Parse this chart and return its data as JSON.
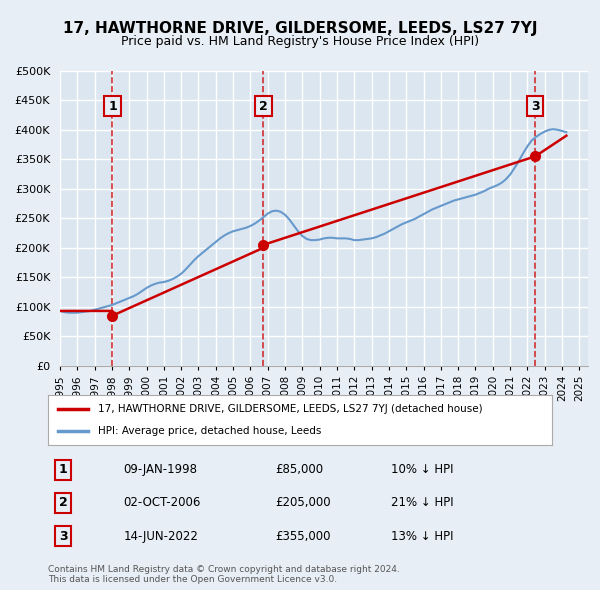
{
  "title": "17, HAWTHORNE DRIVE, GILDERSOME, LEEDS, LS27 7YJ",
  "subtitle": "Price paid vs. HM Land Registry's House Price Index (HPI)",
  "ylabel": "",
  "xlabel": "",
  "ylim": [
    0,
    500000
  ],
  "yticks": [
    0,
    50000,
    100000,
    150000,
    200000,
    250000,
    300000,
    350000,
    400000,
    450000,
    500000
  ],
  "ytick_labels": [
    "£0",
    "£50K",
    "£100K",
    "£150K",
    "£200K",
    "£250K",
    "£300K",
    "£350K",
    "£400K",
    "£450K",
    "£500K"
  ],
  "xlim_start": 1995.0,
  "xlim_end": 2025.5,
  "background_color": "#e8eef5",
  "plot_bg_color": "#dce6f0",
  "grid_color": "#ffffff",
  "sale_dates_num": [
    1998.03,
    2006.75,
    2022.45
  ],
  "sale_prices": [
    85000,
    205000,
    355000
  ],
  "sale_labels": [
    "1",
    "2",
    "3"
  ],
  "legend_property": "17, HAWTHORNE DRIVE, GILDERSOME, LEEDS, LS27 7YJ (detached house)",
  "legend_hpi": "HPI: Average price, detached house, Leeds",
  "line_property_color": "#cc0000",
  "line_hpi_color": "#6699cc",
  "table_rows": [
    {
      "label": "1",
      "date": "09-JAN-1998",
      "price": "£85,000",
      "hpi": "10% ↓ HPI"
    },
    {
      "label": "2",
      "date": "02-OCT-2006",
      "price": "£205,000",
      "hpi": "21% ↓ HPI"
    },
    {
      "label": "3",
      "date": "14-JUN-2022",
      "price": "£355,000",
      "hpi": "13% ↓ HPI"
    }
  ],
  "footnote": "Contains HM Land Registry data © Crown copyright and database right 2024.\nThis data is licensed under the Open Government Licence v3.0.",
  "hpi_data_x": [
    1995.0,
    1995.25,
    1995.5,
    1995.75,
    1996.0,
    1996.25,
    1996.5,
    1996.75,
    1997.0,
    1997.25,
    1997.5,
    1997.75,
    1998.0,
    1998.25,
    1998.5,
    1998.75,
    1999.0,
    1999.25,
    1999.5,
    1999.75,
    2000.0,
    2000.25,
    2000.5,
    2000.75,
    2001.0,
    2001.25,
    2001.5,
    2001.75,
    2002.0,
    2002.25,
    2002.5,
    2002.75,
    2003.0,
    2003.25,
    2003.5,
    2003.75,
    2004.0,
    2004.25,
    2004.5,
    2004.75,
    2005.0,
    2005.25,
    2005.5,
    2005.75,
    2006.0,
    2006.25,
    2006.5,
    2006.75,
    2007.0,
    2007.25,
    2007.5,
    2007.75,
    2008.0,
    2008.25,
    2008.5,
    2008.75,
    2009.0,
    2009.25,
    2009.5,
    2009.75,
    2010.0,
    2010.25,
    2010.5,
    2010.75,
    2011.0,
    2011.25,
    2011.5,
    2011.75,
    2012.0,
    2012.25,
    2012.5,
    2012.75,
    2013.0,
    2013.25,
    2013.5,
    2013.75,
    2014.0,
    2014.25,
    2014.5,
    2014.75,
    2015.0,
    2015.25,
    2015.5,
    2015.75,
    2016.0,
    2016.25,
    2016.5,
    2016.75,
    2017.0,
    2017.25,
    2017.5,
    2017.75,
    2018.0,
    2018.25,
    2018.5,
    2018.75,
    2019.0,
    2019.25,
    2019.5,
    2019.75,
    2020.0,
    2020.25,
    2020.5,
    2020.75,
    2021.0,
    2021.25,
    2021.5,
    2021.75,
    2022.0,
    2022.25,
    2022.5,
    2022.75,
    2023.0,
    2023.25,
    2023.5,
    2023.75,
    2024.0,
    2024.25
  ],
  "hpi_data_y": [
    93000,
    91000,
    90000,
    90000,
    90000,
    91000,
    92000,
    93000,
    95000,
    97000,
    99000,
    101000,
    103000,
    106000,
    109000,
    112000,
    115000,
    118000,
    122000,
    127000,
    132000,
    136000,
    139000,
    141000,
    142000,
    144000,
    147000,
    151000,
    156000,
    163000,
    171000,
    179000,
    186000,
    192000,
    198000,
    204000,
    210000,
    216000,
    221000,
    225000,
    228000,
    230000,
    232000,
    234000,
    237000,
    241000,
    246000,
    252000,
    258000,
    262000,
    263000,
    261000,
    256000,
    248000,
    238000,
    228000,
    220000,
    215000,
    213000,
    213000,
    214000,
    216000,
    217000,
    217000,
    216000,
    216000,
    216000,
    215000,
    213000,
    213000,
    214000,
    215000,
    216000,
    218000,
    221000,
    224000,
    228000,
    232000,
    236000,
    240000,
    243000,
    246000,
    249000,
    253000,
    257000,
    261000,
    265000,
    268000,
    271000,
    274000,
    277000,
    280000,
    282000,
    284000,
    286000,
    288000,
    290000,
    293000,
    296000,
    300000,
    303000,
    306000,
    310000,
    316000,
    324000,
    335000,
    347000,
    360000,
    372000,
    382000,
    388000,
    393000,
    397000,
    400000,
    401000,
    400000,
    398000,
    396000
  ],
  "prop_data_x": [
    1995.0,
    1998.03,
    1998.03,
    2006.75,
    2006.75,
    2022.45,
    2024.25
  ],
  "prop_data_y": [
    93000,
    93000,
    85000,
    200000,
    205000,
    355000,
    390000
  ]
}
